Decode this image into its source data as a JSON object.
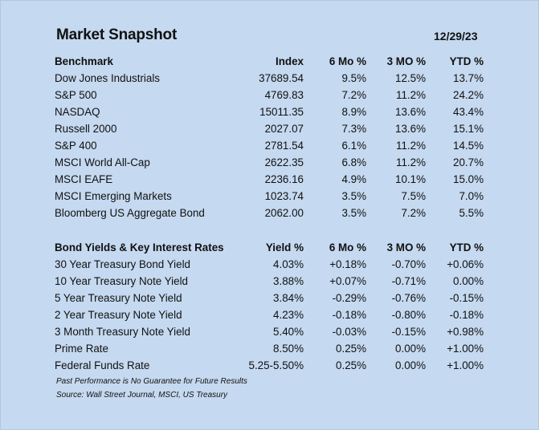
{
  "title": "Market Snapshot",
  "date": "12/29/23",
  "benchmarks": {
    "headers": [
      "Benchmark",
      "Index",
      "6 Mo %",
      "3 MO %",
      "YTD %"
    ],
    "rows": [
      [
        "Dow Jones Industrials",
        "37689.54",
        "9.5%",
        "12.5%",
        "13.7%"
      ],
      [
        "S&P 500",
        "4769.83",
        "7.2%",
        "11.2%",
        "24.2%"
      ],
      [
        "NASDAQ",
        "15011.35",
        "8.9%",
        "13.6%",
        "43.4%"
      ],
      [
        "Russell 2000",
        "2027.07",
        "7.3%",
        "13.6%",
        "15.1%"
      ],
      [
        "S&P 400",
        "2781.54",
        "6.1%",
        "11.2%",
        "14.5%"
      ],
      [
        "MSCI World All-Cap",
        "2622.35",
        "6.8%",
        "11.2%",
        "20.7%"
      ],
      [
        "MSCI EAFE",
        "2236.16",
        "4.9%",
        "10.1%",
        "15.0%"
      ],
      [
        "MSCI Emerging Markets",
        "1023.74",
        "3.5%",
        "7.5%",
        "7.0%"
      ],
      [
        "Bloomberg US Aggregate Bond",
        "2062.00",
        "3.5%",
        "7.2%",
        "5.5%"
      ]
    ]
  },
  "yields": {
    "headers": [
      "Bond Yields & Key Interest Rates",
      "Yield %",
      "6 Mo %",
      "3 MO %",
      "YTD %"
    ],
    "rows": [
      [
        "30 Year Treasury Bond Yield",
        "4.03%",
        "+0.18%",
        "-0.70%",
        "+0.06%"
      ],
      [
        "10 Year Treasury Note Yield",
        "3.88%",
        "+0.07%",
        "-0.71%",
        "0.00%"
      ],
      [
        "5 Year Treasury Note Yield",
        "3.84%",
        "-0.29%",
        "-0.76%",
        "-0.15%"
      ],
      [
        "2 Year Treasury Note Yield",
        "4.23%",
        "-0.18%",
        "-0.80%",
        "-0.18%"
      ],
      [
        "3 Month Treasury Note Yield",
        "5.40%",
        "-0.03%",
        "-0.15%",
        "+0.98%"
      ],
      [
        "Prime Rate",
        "8.50%",
        "0.25%",
        "0.00%",
        "+1.00%"
      ],
      [
        "Federal Funds Rate",
        "5.25-5.50%",
        "0.25%",
        "0.00%",
        "+1.00%"
      ]
    ]
  },
  "footnotes": {
    "disclaimer": "Past Performance is No Guarantee for Future Results",
    "source": "Source: Wall Street Journal, MSCI, US Treasury"
  }
}
